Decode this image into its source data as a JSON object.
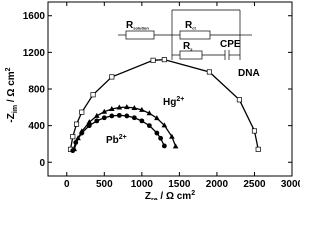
{
  "chart_data": {
    "type": "scatter",
    "xlabel": {
      "main": "Z",
      "sub": "re",
      "unit": " / Ω cm",
      "sup": "2"
    },
    "ylabel": {
      "main": "-Z",
      "sub": "im",
      "unit": " / Ω cm",
      "sup": "2"
    },
    "xlim": [
      -250,
      3000
    ],
    "ylim": [
      -150,
      1750
    ],
    "xticks": [
      0,
      500,
      1000,
      1500,
      2000,
      2500,
      3000
    ],
    "yticks": [
      0,
      400,
      800,
      1200,
      1600
    ],
    "series": [
      {
        "name": "DNA",
        "marker": "open-square",
        "color": "#000000",
        "x": [
          50,
          80,
          130,
          200,
          350,
          600,
          1150,
          1300,
          1900,
          2300,
          2500,
          2550
        ],
        "values": [
          141,
          280,
          416,
          547,
          737,
          932,
          1113,
          1121,
          986,
          682,
          342,
          141
        ]
      },
      {
        "name": "Hg",
        "charge": "2+",
        "marker": "triangle",
        "color": "#000000",
        "x": [
          100,
          150,
          200,
          300,
          400,
          500,
          600,
          700,
          800,
          900,
          1000,
          1100,
          1200,
          1300,
          1400,
          1450
        ],
        "values": [
          143,
          262,
          337,
          438,
          506,
          552,
          582,
          598,
          602,
          593,
          572,
          535,
          482,
          403,
          279,
          174
        ]
      },
      {
        "name": "Pb",
        "charge": "2+",
        "marker": "circle",
        "color": "#000000",
        "x": [
          80,
          120,
          200,
          300,
          400,
          500,
          600,
          700,
          800,
          900,
          1000,
          1100,
          1200,
          1250,
          1300
        ],
        "values": [
          127,
          216,
          319,
          400,
          452,
          486,
          506,
          512,
          506,
          486,
          452,
          400,
          319,
          262,
          178
        ]
      }
    ],
    "inset": [
      {
        "main": "R",
        "sub": "solution"
      },
      {
        "main": "R",
        "sub": "ct"
      },
      {
        "main": "R",
        "sub": "s"
      },
      {
        "main": "CPE"
      }
    ]
  }
}
